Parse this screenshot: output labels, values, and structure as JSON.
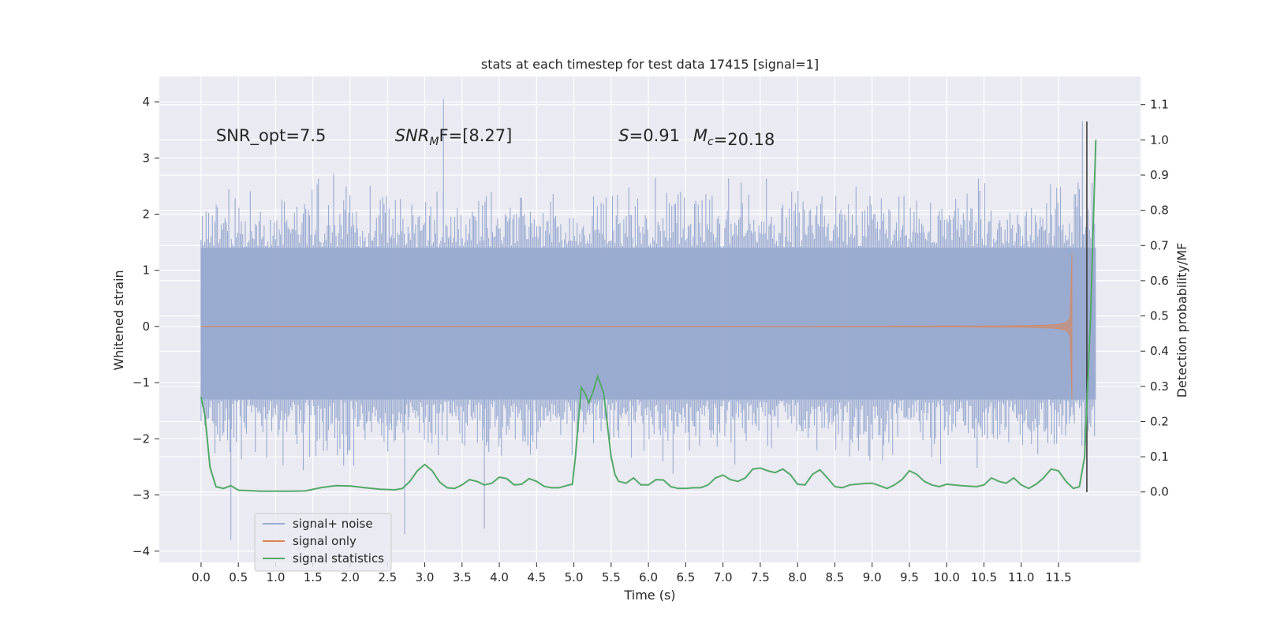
{
  "chart_data": {
    "type": "line",
    "title": "stats at each timestep for test data 17415 [signal=1]",
    "xlabel": "Time (s)",
    "ylabel_left": "Whitened strain",
    "ylabel_right": "Detection probability/MF",
    "xlim": [
      -0.56,
      12.6
    ],
    "ylim_left": [
      -4.2,
      4.45
    ],
    "ylim_right": [
      -0.2,
      1.18
    ],
    "grid": true,
    "x_ticks": [
      0.0,
      0.5,
      1.0,
      1.5,
      2.0,
      2.5,
      3.0,
      3.5,
      4.0,
      4.5,
      5.0,
      5.5,
      6.0,
      6.5,
      7.0,
      7.5,
      8.0,
      8.5,
      9.0,
      9.5,
      10.0,
      10.5,
      11.0,
      11.5
    ],
    "x_tick_labels": [
      "0.0",
      "0.5",
      "1.0",
      "1.5",
      "2.0",
      "2.5",
      "3.0",
      "3.5",
      "4.0",
      "4.5",
      "5.0",
      "5.5",
      "6.0",
      "6.5",
      "7.0",
      "7.5",
      "8.0",
      "8.5",
      "9.0",
      "9.5",
      "10.0",
      "10.5",
      "11.0",
      "11.5"
    ],
    "y_left_ticks": [
      4,
      3,
      2,
      1,
      0,
      -1,
      -2,
      -3,
      -4
    ],
    "y_left_tick_labels": [
      "4",
      "3",
      "2",
      "1",
      "0",
      "−1",
      "−2",
      "−3",
      "−4"
    ],
    "y_right_ticks": [
      1.1,
      1.0,
      0.9,
      0.8,
      0.7,
      0.6,
      0.5,
      0.4,
      0.3,
      0.2,
      0.1,
      0.0
    ],
    "y_right_tick_labels": [
      "1.1",
      "1.0",
      "0.9",
      "0.8",
      "0.7",
      "0.6",
      "0.5",
      "0.4",
      "0.3",
      "0.2",
      "0.1",
      "0.0"
    ],
    "annotations": [
      {
        "name": "snr-opt",
        "text": "SNR_opt=7.5",
        "x": 0.2,
        "y": 3.3
      },
      {
        "name": "snr-mf",
        "text": "SNR_MF=[8.27]",
        "x": 2.6,
        "y": 3.3
      },
      {
        "name": "s-value",
        "text": "S=0.91",
        "x": 5.6,
        "y": 3.3
      },
      {
        "name": "chirp-mass",
        "text": "M_c=20.18",
        "x": 6.6,
        "y": 3.3
      }
    ],
    "vline_x": 11.88,
    "series": [
      {
        "name": "signal+ noise",
        "axis": "left",
        "color": "#9aabd0",
        "x_range": [
          0.0,
          12.0
        ],
        "envelope_typical": [
          -1.3,
          1.4
        ],
        "peaks": [
          {
            "x": 3.25,
            "y": 4.05
          },
          {
            "x": 11.82,
            "y": 3.65
          },
          {
            "x": 0.4,
            "y": -3.8
          },
          {
            "x": 2.73,
            "y": -3.7
          },
          {
            "x": 3.8,
            "y": -3.6
          }
        ]
      },
      {
        "name": "signal only",
        "axis": "left",
        "color": "#dd8452",
        "chirp_start": 7.5,
        "chirp_end": 11.68,
        "max_amplitude": 1.5
      },
      {
        "name": "signal statistics",
        "axis": "right",
        "color": "#55a868",
        "x": [
          0.0,
          0.05,
          0.12,
          0.2,
          0.3,
          0.4,
          0.5,
          0.6,
          0.8,
          1.0,
          1.2,
          1.4,
          1.6,
          1.8,
          2.0,
          2.2,
          2.4,
          2.6,
          2.7,
          2.8,
          2.9,
          3.0,
          3.1,
          3.2,
          3.3,
          3.4,
          3.5,
          3.6,
          3.7,
          3.8,
          3.9,
          4.0,
          4.1,
          4.2,
          4.3,
          4.4,
          4.5,
          4.6,
          4.7,
          4.8,
          4.9,
          4.98,
          5.02,
          5.1,
          5.15,
          5.2,
          5.25,
          5.32,
          5.4,
          5.5,
          5.55,
          5.6,
          5.7,
          5.8,
          5.9,
          6.0,
          6.1,
          6.2,
          6.3,
          6.4,
          6.5,
          6.6,
          6.7,
          6.8,
          6.9,
          7.0,
          7.1,
          7.2,
          7.3,
          7.4,
          7.5,
          7.6,
          7.7,
          7.8,
          7.9,
          8.0,
          8.1,
          8.2,
          8.3,
          8.4,
          8.5,
          8.6,
          8.7,
          8.8,
          8.9,
          9.0,
          9.1,
          9.2,
          9.3,
          9.4,
          9.5,
          9.6,
          9.7,
          9.8,
          9.9,
          10.0,
          10.2,
          10.4,
          10.5,
          10.6,
          10.7,
          10.8,
          10.9,
          11.0,
          11.1,
          11.2,
          11.3,
          11.4,
          11.5,
          11.6,
          11.7,
          11.78,
          11.85,
          11.93,
          12.0
        ],
        "values": [
          0.27,
          0.22,
          0.07,
          0.015,
          0.01,
          0.018,
          0.005,
          0.004,
          0.002,
          0.002,
          0.002,
          0.003,
          0.012,
          0.018,
          0.017,
          0.012,
          0.008,
          0.006,
          0.01,
          0.03,
          0.06,
          0.078,
          0.06,
          0.028,
          0.012,
          0.01,
          0.02,
          0.035,
          0.03,
          0.02,
          0.025,
          0.042,
          0.038,
          0.02,
          0.022,
          0.038,
          0.03,
          0.016,
          0.012,
          0.012,
          0.018,
          0.022,
          0.1,
          0.297,
          0.28,
          0.253,
          0.28,
          0.328,
          0.28,
          0.1,
          0.05,
          0.03,
          0.025,
          0.04,
          0.02,
          0.02,
          0.035,
          0.034,
          0.015,
          0.01,
          0.01,
          0.012,
          0.012,
          0.02,
          0.04,
          0.048,
          0.035,
          0.03,
          0.04,
          0.065,
          0.068,
          0.06,
          0.055,
          0.065,
          0.05,
          0.022,
          0.02,
          0.05,
          0.063,
          0.04,
          0.015,
          0.012,
          0.02,
          0.022,
          0.024,
          0.025,
          0.018,
          0.01,
          0.02,
          0.035,
          0.06,
          0.05,
          0.03,
          0.02,
          0.015,
          0.022,
          0.018,
          0.015,
          0.02,
          0.04,
          0.03,
          0.025,
          0.04,
          0.02,
          0.01,
          0.022,
          0.04,
          0.065,
          0.06,
          0.03,
          0.01,
          0.015,
          0.1,
          0.5,
          1.0
        ]
      }
    ],
    "legend": {
      "placement": "lower-left",
      "entries": [
        "signal+ noise",
        "signal only",
        "signal statistics"
      ]
    }
  }
}
